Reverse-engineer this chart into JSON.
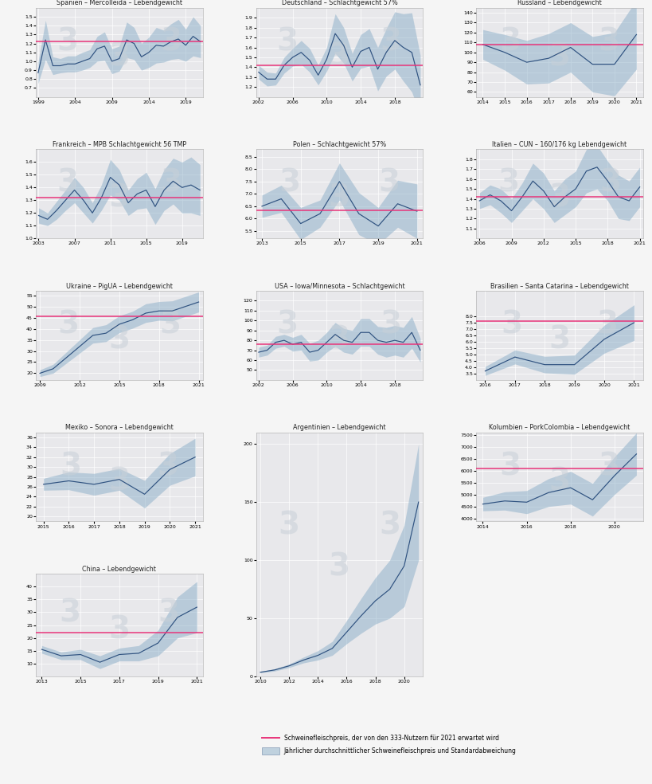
{
  "background_color": "#f5f5f5",
  "panel_color": "#e8e8eb",
  "line_color": "#2f5280",
  "fill_color": "#8aaec8",
  "fill_alpha": 0.5,
  "pink_color": "#e8357a",
  "title_fontsize": 5.8,
  "tick_fontsize": 4.5,
  "label_fontsize": 5.0,
  "watermark_color": "#c8d0d8",
  "watermark_alpha": 0.55,
  "watermark_fontsize": 28,
  "panels": [
    {
      "title": "Spanien – Mercolleida – Lebendgewicht",
      "years": [
        1999,
        2000,
        2001,
        2002,
        2003,
        2004,
        2005,
        2006,
        2007,
        2008,
        2009,
        2010,
        2011,
        2012,
        2013,
        2014,
        2015,
        2016,
        2017,
        2018,
        2019,
        2020,
        2021
      ],
      "mean": [
        0.87,
        1.24,
        0.95,
        0.95,
        0.97,
        0.97,
        1.0,
        1.03,
        1.14,
        1.17,
        1.0,
        1.03,
        1.24,
        1.2,
        1.05,
        1.1,
        1.18,
        1.17,
        1.22,
        1.25,
        1.18,
        1.28,
        1.22
      ],
      "std": [
        0.12,
        0.22,
        0.1,
        0.08,
        0.09,
        0.09,
        0.1,
        0.1,
        0.14,
        0.16,
        0.14,
        0.14,
        0.2,
        0.18,
        0.15,
        0.17,
        0.2,
        0.18,
        0.2,
        0.22,
        0.18,
        0.22,
        0.18
      ],
      "pink_y": 1.22,
      "ylim": [
        0.6,
        1.6
      ],
      "yticks": [
        0.7,
        0.8,
        0.9,
        1.0,
        1.1,
        1.2,
        1.3,
        1.4,
        1.5
      ],
      "xtick_step": 5
    },
    {
      "title": "Deutschland – Schlachtgewicht 57%",
      "years": [
        2002,
        2003,
        2004,
        2005,
        2006,
        2007,
        2008,
        2009,
        2010,
        2011,
        2012,
        2013,
        2014,
        2015,
        2016,
        2017,
        2018,
        2019,
        2020,
        2021
      ],
      "mean": [
        1.35,
        1.28,
        1.28,
        1.42,
        1.5,
        1.55,
        1.47,
        1.32,
        1.48,
        1.74,
        1.62,
        1.4,
        1.56,
        1.6,
        1.38,
        1.55,
        1.67,
        1.6,
        1.55,
        1.22
      ],
      "std": [
        0.07,
        0.07,
        0.06,
        0.08,
        0.09,
        0.12,
        0.12,
        0.1,
        0.12,
        0.2,
        0.18,
        0.14,
        0.17,
        0.19,
        0.22,
        0.24,
        0.29,
        0.34,
        0.4,
        0.3
      ],
      "pink_y": 1.42,
      "ylim": [
        1.1,
        2.0
      ],
      "yticks": [
        1.2,
        1.3,
        1.4,
        1.5,
        1.6,
        1.7,
        1.8,
        1.9
      ],
      "xtick_step": 4
    },
    {
      "title": "Russland – Lebendgewicht",
      "years": [
        2014,
        2015,
        2016,
        2017,
        2018,
        2019,
        2020,
        2021
      ],
      "mean": [
        108,
        100,
        90,
        94,
        105,
        88,
        88,
        118
      ],
      "std": [
        15,
        18,
        22,
        25,
        25,
        28,
        32,
        35
      ],
      "pink_y": 108,
      "ylim": [
        55,
        145
      ],
      "yticks": [
        60,
        70,
        80,
        90,
        100,
        110,
        120,
        130,
        140
      ],
      "xtick_step": 1
    },
    {
      "title": "Frankreich – MPB Schlachtgewicht 56 TMP",
      "years": [
        2003,
        2004,
        2005,
        2006,
        2007,
        2008,
        2009,
        2010,
        2011,
        2012,
        2013,
        2014,
        2015,
        2016,
        2017,
        2018,
        2019,
        2020,
        2021
      ],
      "mean": [
        1.18,
        1.15,
        1.22,
        1.3,
        1.38,
        1.3,
        1.2,
        1.32,
        1.48,
        1.42,
        1.28,
        1.35,
        1.38,
        1.25,
        1.38,
        1.45,
        1.4,
        1.42,
        1.38
      ],
      "std": [
        0.06,
        0.05,
        0.07,
        0.08,
        0.1,
        0.1,
        0.08,
        0.1,
        0.14,
        0.12,
        0.1,
        0.12,
        0.14,
        0.14,
        0.16,
        0.18,
        0.2,
        0.22,
        0.2
      ],
      "pink_y": 1.32,
      "ylim": [
        1.0,
        1.7
      ],
      "yticks": [
        1.0,
        1.1,
        1.2,
        1.3,
        1.4,
        1.5,
        1.6
      ],
      "xtick_step": 4
    },
    {
      "title": "Polen – Schlachtgewicht 57%",
      "years": [
        2013,
        2014,
        2015,
        2016,
        2017,
        2018,
        2019,
        2020,
        2021
      ],
      "mean": [
        6.5,
        6.8,
        5.8,
        6.2,
        7.5,
        6.2,
        5.7,
        6.6,
        6.3
      ],
      "std": [
        0.45,
        0.55,
        0.65,
        0.55,
        0.75,
        0.85,
        0.75,
        0.95,
        1.1
      ],
      "pink_y": 6.35,
      "ylim": [
        5.2,
        8.8
      ],
      "yticks": [
        5.5,
        6.0,
        6.5,
        7.0,
        7.5,
        8.0,
        8.5
      ],
      "xtick_step": 2
    },
    {
      "title": "Italien – CUN – 160/176 kg Lebendgewicht",
      "years": [
        2006,
        2007,
        2008,
        2009,
        2010,
        2011,
        2012,
        2013,
        2014,
        2015,
        2016,
        2017,
        2018,
        2019,
        2020,
        2021
      ],
      "mean": [
        1.38,
        1.44,
        1.38,
        1.28,
        1.42,
        1.58,
        1.48,
        1.32,
        1.42,
        1.5,
        1.68,
        1.72,
        1.58,
        1.42,
        1.38,
        1.52
      ],
      "std": [
        0.08,
        0.1,
        0.12,
        0.12,
        0.14,
        0.18,
        0.18,
        0.16,
        0.18,
        0.18,
        0.22,
        0.22,
        0.2,
        0.22,
        0.2,
        0.2
      ],
      "pink_y": 1.42,
      "ylim": [
        1.0,
        1.9
      ],
      "yticks": [
        1.1,
        1.2,
        1.3,
        1.4,
        1.5,
        1.6,
        1.7,
        1.8
      ],
      "xtick_step": 3
    },
    {
      "title": "Ukraine – PigUA – Lebendgewicht",
      "years": [
        2009,
        2010,
        2011,
        2012,
        2013,
        2014,
        2015,
        2016,
        2017,
        2018,
        2019,
        2020,
        2021
      ],
      "mean": [
        20,
        22,
        27,
        32,
        37,
        38,
        42,
        44,
        47,
        48,
        48,
        50,
        52
      ],
      "std": [
        1.5,
        2,
        2.5,
        3,
        3.5,
        3.8,
        3.8,
        3.8,
        4.2,
        4.2,
        4.5,
        4.5,
        4.5
      ],
      "pink_y": 45.5,
      "ylim": [
        17,
        57
      ],
      "yticks": [
        20.0,
        25.0,
        30.0,
        35.0,
        40.0,
        45.0,
        50.0,
        55.0
      ],
      "xtick_step": 3
    },
    {
      "title": "USA – Iowa/Minnesota – Schlachtgewicht",
      "years": [
        2002,
        2003,
        2004,
        2005,
        2006,
        2007,
        2008,
        2009,
        2010,
        2011,
        2012,
        2013,
        2014,
        2015,
        2016,
        2017,
        2018,
        2019,
        2020,
        2021
      ],
      "mean": [
        68,
        70,
        78,
        80,
        76,
        78,
        68,
        70,
        78,
        86,
        80,
        78,
        88,
        88,
        80,
        78,
        80,
        78,
        88,
        70
      ],
      "std": [
        5,
        5,
        6,
        6,
        7,
        8,
        9,
        10,
        10,
        12,
        12,
        12,
        14,
        14,
        14,
        15,
        15,
        15,
        16,
        12
      ],
      "pink_y": 76,
      "ylim": [
        40,
        130
      ],
      "yticks": [
        50,
        60,
        70,
        80,
        90,
        100,
        110,
        120
      ],
      "xtick_step": 4
    },
    {
      "title": "Brasilien – Santa Catarina – Lebendgewicht",
      "years": [
        2016,
        2017,
        2018,
        2019,
        2020,
        2021
      ],
      "mean": [
        3.7,
        4.8,
        4.2,
        4.2,
        6.2,
        7.5
      ],
      "std": [
        0.35,
        0.55,
        0.65,
        0.75,
        1.1,
        1.4
      ],
      "pink_y": 7.6,
      "ylim": [
        3.0,
        10.0
      ],
      "yticks": [
        3.5,
        4.0,
        4.5,
        5.0,
        5.5,
        6.0,
        6.5,
        7.0,
        7.5,
        8.0
      ],
      "xtick_step": 1
    },
    {
      "title": "Mexiko – Sonora – Lebendgewicht",
      "years": [
        2015,
        2016,
        2017,
        2018,
        2019,
        2020,
        2021
      ],
      "mean": [
        26.5,
        27.2,
        26.5,
        27.5,
        24.5,
        29.5,
        32.0
      ],
      "std": [
        1.2,
        1.8,
        2.2,
        2.2,
        2.8,
        3.2,
        3.8
      ],
      "pink_y": null,
      "ylim": [
        19,
        37
      ],
      "yticks": [
        20,
        22,
        24,
        26,
        28,
        30,
        32,
        34,
        36
      ],
      "xtick_step": 1
    },
    {
      "title": "Argentinien – Lebendgewicht",
      "years": [
        2010,
        2011,
        2012,
        2013,
        2014,
        2015,
        2016,
        2017,
        2018,
        2019,
        2020,
        2021
      ],
      "mean": [
        3.5,
        5.5,
        9.0,
        14.0,
        18.0,
        24.0,
        38.0,
        52.0,
        65.0,
        75.0,
        95.0,
        150.0
      ],
      "std": [
        0.5,
        1.0,
        1.5,
        2.5,
        4.0,
        6.0,
        10.0,
        15.0,
        20.0,
        25.0,
        35.0,
        50.0
      ],
      "pink_y": null,
      "ylim": [
        0,
        210
      ],
      "yticks": [
        0,
        50,
        100,
        150,
        200
      ],
      "xtick_step": 2
    },
    {
      "title": "Kolumbien – PorkColombia – Lebendgewicht",
      "years": [
        2014,
        2015,
        2016,
        2017,
        2018,
        2019,
        2020,
        2021
      ],
      "mean": [
        4620,
        4750,
        4700,
        5100,
        5300,
        4800,
        5800,
        6700
      ],
      "std": [
        280,
        380,
        480,
        580,
        680,
        680,
        780,
        880
      ],
      "pink_y": 6100,
      "ylim": [
        3900,
        7600
      ],
      "yticks": [
        4000,
        4500,
        5000,
        5500,
        6000,
        6500,
        7000,
        7500
      ],
      "xtick_step": 2
    },
    {
      "title": "China – Lebendgewicht",
      "years": [
        2013,
        2014,
        2015,
        2016,
        2017,
        2018,
        2019,
        2020,
        2021
      ],
      "mean": [
        15.5,
        13.0,
        13.5,
        10.5,
        13.5,
        14.0,
        18.0,
        28.0,
        32.0
      ],
      "std": [
        1.5,
        1.5,
        2.0,
        2.5,
        2.5,
        3.0,
        5.0,
        8.0,
        10.0
      ],
      "pink_y": 22.0,
      "ylim": [
        5,
        45
      ],
      "yticks": [
        10,
        15,
        20,
        25,
        30,
        35,
        40
      ],
      "xtick_step": 2
    }
  ],
  "legend_pink_label": "Schweinefleischpreis, der von den 333-Nutzern für 2021 erwartet wird",
  "legend_blue_label": "Jährlicher durchschnittlicher Schweinefleischpreis und Standardabweichung"
}
